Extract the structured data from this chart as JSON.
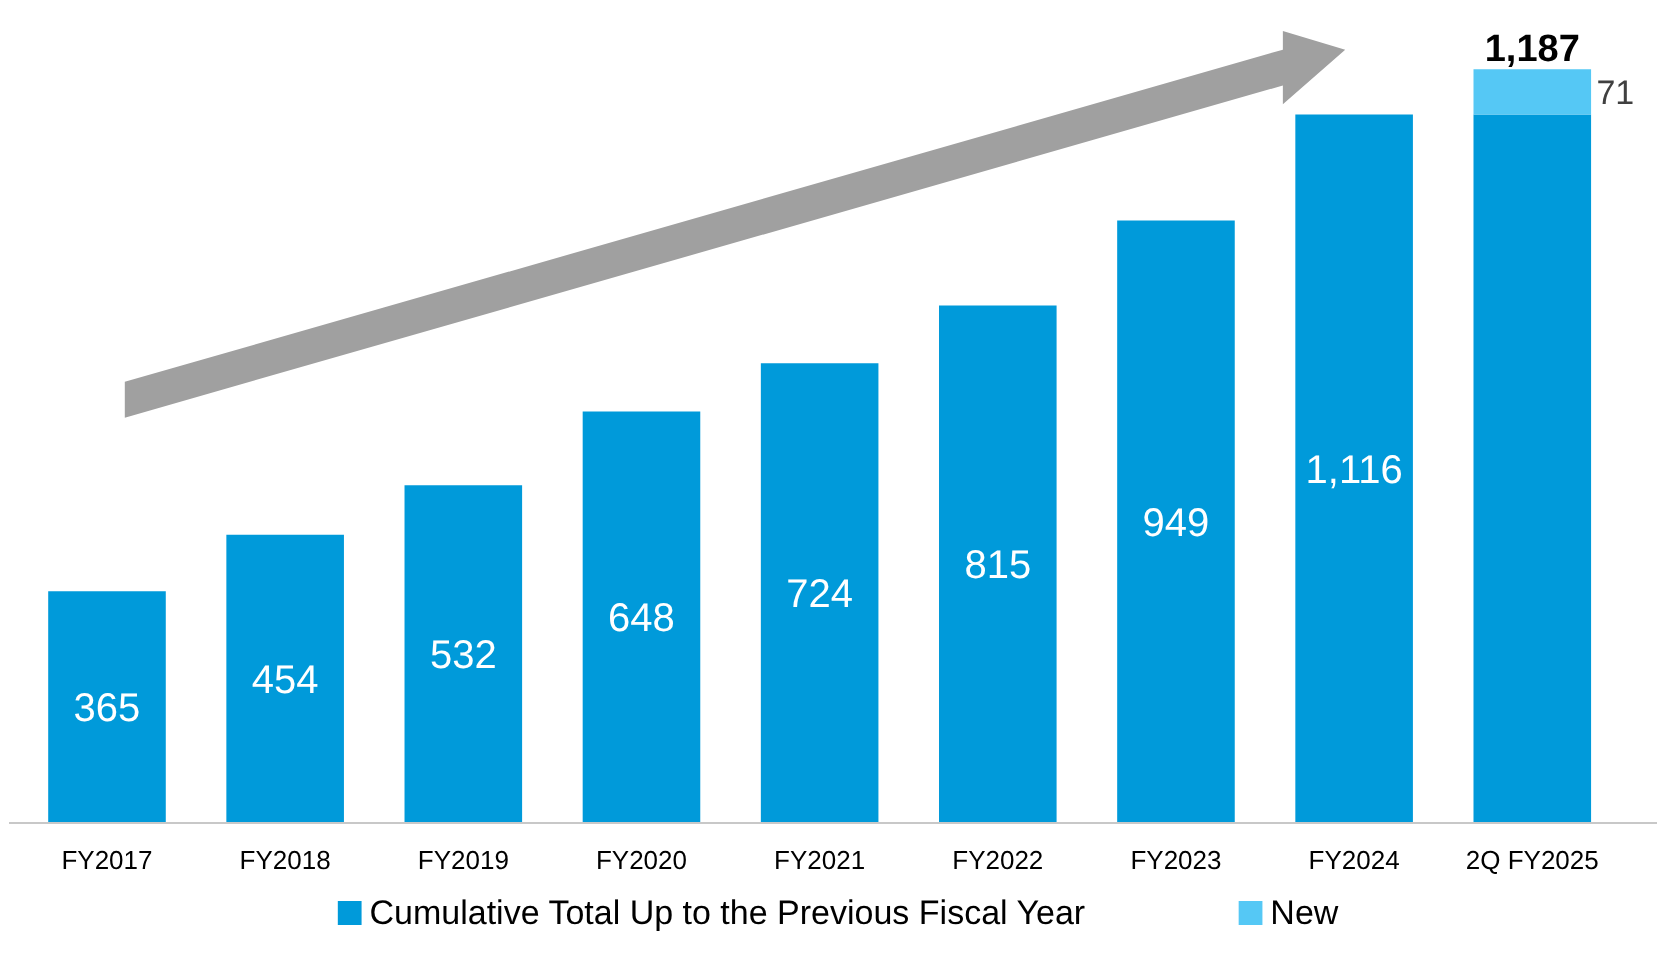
{
  "chart_data": {
    "type": "bar",
    "stacked": true,
    "categories": [
      "FY2017",
      "FY2018",
      "FY2019",
      "FY2020",
      "FY2021",
      "FY2022",
      "FY2023",
      "FY2024",
      "2Q FY2025"
    ],
    "series": [
      {
        "name": "Cumulative Total Up to the Previous Fiscal Year",
        "color": "#009ada",
        "values": [
          365,
          454,
          532,
          648,
          724,
          815,
          949,
          1116,
          1116
        ],
        "value_labels": [
          "365",
          "454",
          "532",
          "648",
          "724",
          "815",
          "949",
          "1,116",
          null
        ]
      },
      {
        "name": "New",
        "color": "#55c8f5",
        "values": [
          null,
          null,
          null,
          null,
          null,
          null,
          null,
          null,
          71
        ],
        "value_labels": [
          null,
          null,
          null,
          null,
          null,
          null,
          null,
          null,
          "71"
        ]
      }
    ],
    "totals": [
      null,
      null,
      null,
      null,
      null,
      null,
      null,
      null,
      "1,187"
    ],
    "legend": "bottom"
  }
}
